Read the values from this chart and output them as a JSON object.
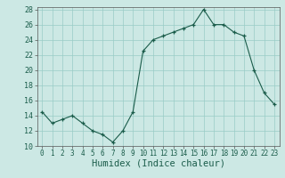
{
  "x": [
    0,
    1,
    2,
    3,
    4,
    5,
    6,
    7,
    8,
    9,
    10,
    11,
    12,
    13,
    14,
    15,
    16,
    17,
    18,
    19,
    20,
    21,
    22,
    23
  ],
  "y": [
    14.5,
    13.0,
    13.5,
    14.0,
    13.0,
    12.0,
    11.5,
    10.5,
    12.0,
    14.5,
    22.5,
    24.0,
    24.5,
    25.0,
    25.5,
    26.0,
    28.0,
    26.0,
    26.0,
    25.0,
    24.5,
    20.0,
    17.0,
    15.5
  ],
  "xlabel": "Humidex (Indice chaleur)",
  "ylim": [
    10,
    28
  ],
  "xlim": [
    -0.5,
    23.5
  ],
  "yticks": [
    10,
    12,
    14,
    16,
    18,
    20,
    22,
    24,
    26,
    28
  ],
  "xticks": [
    0,
    1,
    2,
    3,
    4,
    5,
    6,
    7,
    8,
    9,
    10,
    11,
    12,
    13,
    14,
    15,
    16,
    17,
    18,
    19,
    20,
    21,
    22,
    23
  ],
  "line_color": "#1a5c4a",
  "marker_color": "#1a5c4a",
  "bg_color": "#cce8e4",
  "grid_color": "#99ccc6",
  "axes_bg": "#cce8e4",
  "tick_label_color": "#1a5c4a",
  "xlabel_fontsize": 7.5,
  "tick_fontsize": 5.5
}
